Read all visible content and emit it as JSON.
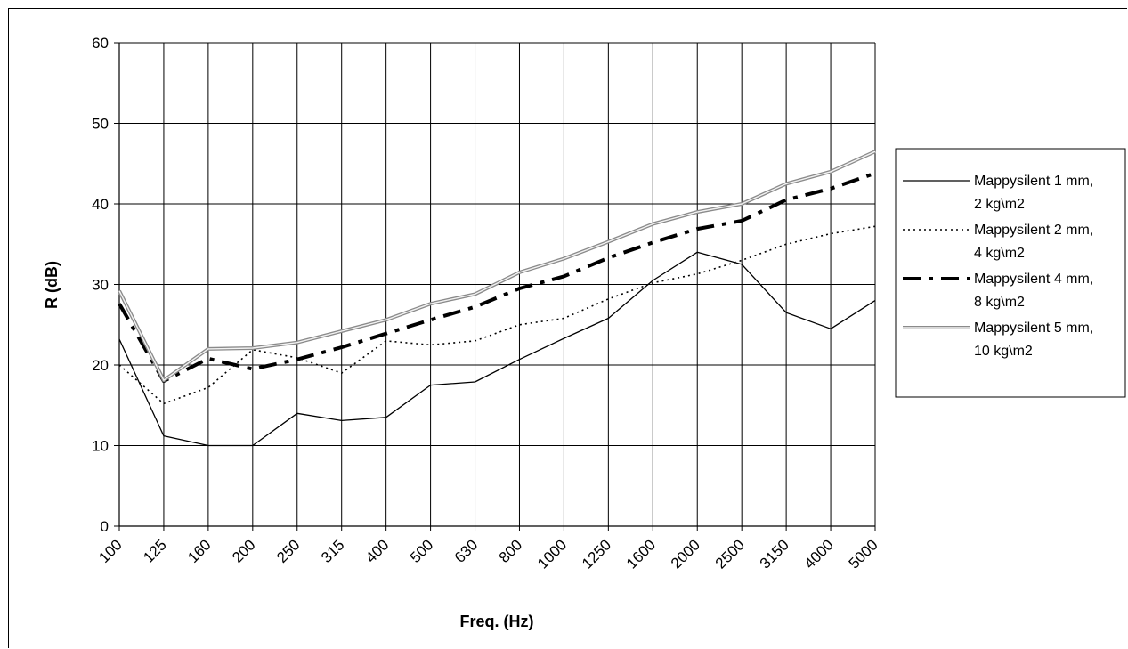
{
  "chart_data": {
    "type": "line",
    "title": "",
    "xlabel": "Freq. (Hz)",
    "ylabel": "R (dB)",
    "ylim": [
      0,
      60
    ],
    "yticks": [
      0,
      10,
      20,
      30,
      40,
      50,
      60
    ],
    "grid": true,
    "legend_position": "right",
    "categories": [
      "100",
      "125",
      "160",
      "200",
      "250",
      "315",
      "400",
      "500",
      "630",
      "800",
      "1000",
      "1250",
      "1600",
      "2000",
      "2500",
      "3150",
      "4000",
      "5000"
    ],
    "series": [
      {
        "name": "Mappysilent 1 mm, 2 kg\\m2",
        "legend_lines": [
          "Mappysilent 1 mm,",
          "2 kg\\m2"
        ],
        "style": "solid",
        "values": [
          23.2,
          11.2,
          10.0,
          10.0,
          14.0,
          13.1,
          13.5,
          17.5,
          17.9,
          20.7,
          23.3,
          25.8,
          30.5,
          34.0,
          32.5,
          26.5,
          24.5,
          28.0
        ]
      },
      {
        "name": "Mappysilent 2 mm, 4 kg\\m2",
        "legend_lines": [
          "Mappysilent 2 mm,",
          "4 kg\\m2"
        ],
        "style": "dotted",
        "values": [
          20.0,
          15.2,
          17.2,
          21.9,
          20.9,
          19.0,
          23.0,
          22.5,
          23.0,
          25.0,
          25.8,
          28.2,
          30.2,
          31.3,
          33.0,
          35.0,
          36.3,
          37.2
        ]
      },
      {
        "name": "Mappysilent 4 mm, 8 kg\\m2",
        "legend_lines": [
          "Mappysilent 4 mm,",
          "8 kg\\m2"
        ],
        "style": "dashdot",
        "values": [
          27.6,
          18.0,
          20.8,
          19.5,
          20.7,
          22.2,
          23.9,
          25.6,
          27.2,
          29.5,
          31.0,
          33.3,
          35.2,
          36.9,
          37.9,
          40.5,
          41.9,
          43.8
        ]
      },
      {
        "name": "Mappysilent 5 mm, 10 kg\\m2",
        "legend_lines": [
          "Mappysilent 5 mm,",
          "10 kg\\m2"
        ],
        "style": "gray",
        "values": [
          29.2,
          18.1,
          22.0,
          22.1,
          22.8,
          24.2,
          25.6,
          27.6,
          28.8,
          31.5,
          33.2,
          35.3,
          37.5,
          39.0,
          40.0,
          42.5,
          44.0,
          46.5
        ]
      }
    ]
  }
}
